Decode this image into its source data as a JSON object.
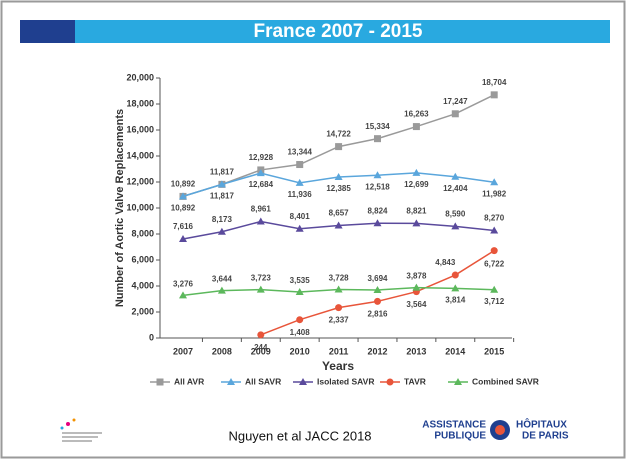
{
  "slide_title": "France 2007 - 2015",
  "footer": "Nguyen et al JACC 2018",
  "logo": {
    "line1": "ASSISTANCE",
    "line2": "PUBLIQUE",
    "line3": "HÔPITAUX",
    "line4": "DE PARIS"
  },
  "chart_data": {
    "type": "line",
    "x_label": "Years",
    "y_label": "Number of Aortic Valve Replacements",
    "categories": [
      "2007",
      "2008",
      "2009",
      "2010",
      "2011",
      "2012",
      "2013",
      "2014",
      "2015"
    ],
    "ylim": [
      0,
      20000
    ],
    "yticks": [
      0,
      {
        "value": 2000,
        "label": "2,000"
      },
      {
        "value": 4000,
        "label": "4,000"
      },
      {
        "value": 6000,
        "label": "6,000"
      },
      {
        "value": 8000,
        "label": "8,000"
      },
      {
        "value": 10000,
        "label": "10,000"
      },
      {
        "value": 12000,
        "label": "12,000"
      },
      {
        "value": 14000,
        "label": "14,000"
      },
      {
        "value": 16000,
        "label": "16,000"
      },
      {
        "value": 18000,
        "label": "18,000"
      },
      {
        "value": 20000,
        "label": "20,000"
      }
    ],
    "grid": false,
    "series": [
      {
        "name": "All AVR",
        "color": "#9a9a9a",
        "marker": "square",
        "values": [
          10892,
          11817,
          12928,
          13344,
          14722,
          15334,
          16263,
          17247,
          18704
        ],
        "value_labels": [
          "10,892",
          "11,817",
          "12,928",
          "13,344",
          "14,722",
          "15,334",
          "16,263",
          "17,247",
          "18,704"
        ]
      },
      {
        "name": "All SAVR",
        "color": "#5aa6dc",
        "marker": "triangle",
        "values": [
          10892,
          11817,
          12684,
          11936,
          12385,
          12518,
          12699,
          12404,
          11982
        ],
        "value_labels": [
          "10,892",
          "11,817",
          "12,684",
          "11,936",
          "12,385",
          "12,518",
          "12,699",
          "12,404",
          "11,982"
        ]
      },
      {
        "name": "Isolated SAVR",
        "color": "#5a4a9c",
        "marker": "triangle",
        "values": [
          7616,
          8173,
          8961,
          8401,
          8657,
          8824,
          8821,
          8590,
          8270
        ],
        "value_labels": [
          "7,616",
          "8,173",
          "8,961",
          "8,401",
          "8,657",
          "8,824",
          "8,821",
          "8,590",
          "8,270"
        ]
      },
      {
        "name": "TAVR",
        "color": "#e8553a",
        "marker": "circle",
        "values": [
          null,
          null,
          244,
          1408,
          2337,
          2816,
          3564,
          4843,
          6722
        ],
        "value_labels": [
          null,
          null,
          "244",
          "1,408",
          "2,337",
          "2,816",
          "3,564",
          "4,843",
          "6,722"
        ]
      },
      {
        "name": "Combined SAVR",
        "color": "#5cb85c",
        "marker": "triangle",
        "values": [
          3276,
          3644,
          3723,
          3535,
          3728,
          3694,
          3878,
          3814,
          3712
        ],
        "value_labels": [
          "3,276",
          "3,644",
          "3,723",
          "3,535",
          "3,728",
          "3,694",
          "3,878",
          "3,814",
          "3,712"
        ]
      }
    ]
  }
}
